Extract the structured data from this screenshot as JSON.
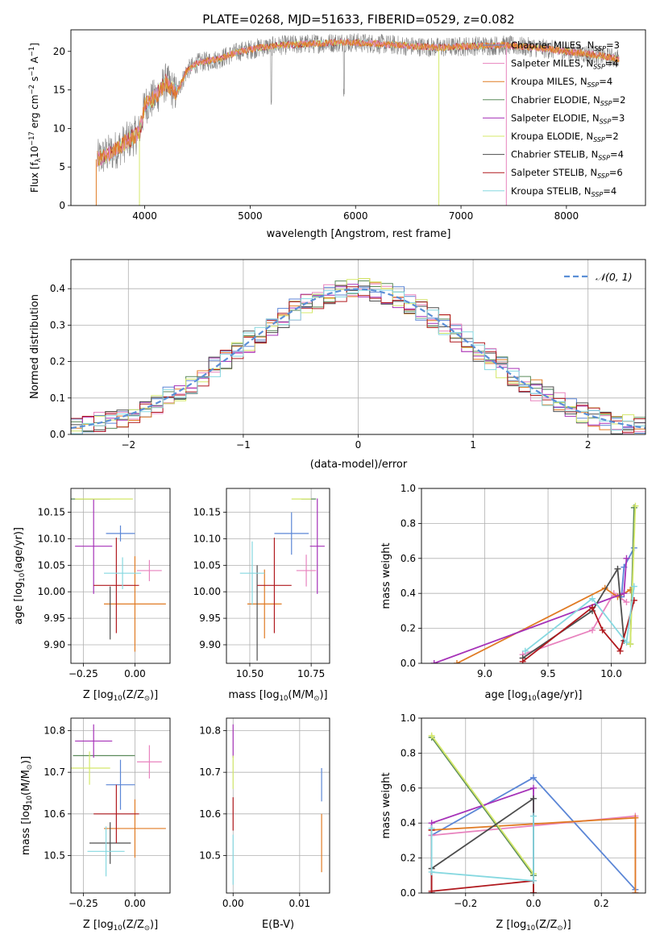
{
  "figure_title": "PLATE=0268, MJD=51633, FIBERID=0529, z=0.082",
  "colors": {
    "Chabrier MILES": "#5b86d6",
    "Salpeter MILES": "#e882be",
    "Kroupa MILES": "#e07b24",
    "Chabrier ELODIE": "#5a8a5a",
    "Salpeter ELODIE": "#a632b8",
    "Kroupa ELODIE": "#d4e86a",
    "Chabrier STELIB": "#4d4d4d",
    "Salpeter STELIB": "#b0191e",
    "Kroupa STELIB": "#86d8e0",
    "normal": "#5b8fd6"
  },
  "chart_data": [
    {
      "id": "spectrum",
      "type": "line",
      "xlabel": "wavelength [Angstrom, rest frame]",
      "ylabel_parts": [
        "Flux [f",
        "λ",
        "10",
        "−17",
        " erg cm",
        "−2",
        " s",
        "−1",
        " A",
        "−1",
        "]"
      ],
      "xlim": [
        3300,
        8750
      ],
      "ylim": [
        0,
        22.8
      ],
      "xticks": [
        4000,
        5000,
        6000,
        7000,
        8000
      ],
      "yticks": [
        0,
        5,
        10,
        15,
        20
      ],
      "continuum_x": [
        3550,
        3700,
        3850,
        3950,
        4000,
        4100,
        4200,
        4300,
        4400,
        4500,
        4700,
        4900,
        5100,
        5300,
        5600,
        5900,
        6200,
        6500,
        6800,
        7100,
        7400,
        7700,
        8000,
        8300,
        8500
      ],
      "continuum_y": [
        6.0,
        7.0,
        8.5,
        9.5,
        13.0,
        14.0,
        16.0,
        14.5,
        17.5,
        18.5,
        19.0,
        20.0,
        20.5,
        20.8,
        21.0,
        21.2,
        21.0,
        20.7,
        20.5,
        20.7,
        20.8,
        20.5,
        20.0,
        19.5,
        19.0
      ],
      "series": [
        {
          "name": "Chabrier MILES",
          "ssp": "3"
        },
        {
          "name": "Salpeter MILES",
          "ssp": "4"
        },
        {
          "name": "Kroupa MILES",
          "ssp": "4"
        },
        {
          "name": "Chabrier ELODIE",
          "ssp": "2"
        },
        {
          "name": "Salpeter ELODIE",
          "ssp": "3"
        },
        {
          "name": "Kroupa ELODIE",
          "ssp": "2"
        },
        {
          "name": "Chabrier STELIB",
          "ssp": "4"
        },
        {
          "name": "Salpeter STELIB",
          "ssp": "6"
        },
        {
          "name": "Kroupa STELIB",
          "ssp": "4"
        }
      ],
      "ssp_label": "N",
      "ssp_sub": "SSP",
      "legend_loc": "right"
    },
    {
      "id": "residuals",
      "type": "histogram",
      "xlabel": "(data-model)/error",
      "ylabel": "Normed distribution",
      "xlim": [
        -2.5,
        2.5
      ],
      "ylim": [
        0,
        0.48
      ],
      "xticks": [
        -2,
        -1,
        0,
        1,
        2
      ],
      "yticks": [
        0,
        0.1,
        0.2,
        0.3,
        0.4
      ],
      "bin_width": 0.1,
      "bin_start": -2.5,
      "legend_label": "𝒩(0, 1)",
      "grid": true
    },
    {
      "id": "age-Z",
      "type": "errorbar",
      "xlabel_parts": [
        "Z [log",
        "10",
        "(Z/Z",
        "⊙",
        ")]"
      ],
      "ylabel_parts": [
        "age  [log",
        "10",
        "(age/yr)]"
      ],
      "xlim": [
        -0.31,
        0.17
      ],
      "ylim": [
        9.865,
        10.195
      ],
      "xticks": [
        -0.25,
        0.0
      ],
      "xtick_labels": [
        "−0.25",
        "0.00"
      ],
      "yticks": [
        9.9,
        9.95,
        10.0,
        10.05,
        10.1,
        10.15
      ],
      "points": [
        {
          "series": "Chabrier MILES",
          "x": -0.07,
          "xerr": 0.07,
          "y": 10.11,
          "yerr": 0.015
        },
        {
          "series": "Salpeter MILES",
          "x": 0.07,
          "xerr": 0.06,
          "y": 10.04,
          "yerr": 0.02
        },
        {
          "series": "Kroupa MILES",
          "x": 0.0,
          "xerr": 0.15,
          "y": 9.977,
          "yerr": 0.09
        },
        {
          "series": "Chabrier ELODIE",
          "x": -0.22,
          "xerr": 0.1,
          "y": 10.175,
          "yerr": 0.0
        },
        {
          "series": "Salpeter ELODIE",
          "x": -0.2,
          "xerr": 0.09,
          "y": 10.086,
          "yerr": 0.09
        },
        {
          "series": "Kroupa ELODIE",
          "x": -0.15,
          "xerr": 0.14,
          "y": 10.175,
          "yerr": 0.0
        },
        {
          "series": "Chabrier STELIB",
          "x": -0.12,
          "xerr": 0.0,
          "y": 9.96,
          "yerr": 0.05
        },
        {
          "series": "Salpeter STELIB",
          "x": -0.09,
          "xerr": 0.11,
          "y": 10.012,
          "yerr": 0.09
        },
        {
          "series": "Kroupa STELIB",
          "x": -0.06,
          "xerr": 0.09,
          "y": 10.035,
          "yerr": 0.03
        }
      ],
      "grid": true
    },
    {
      "id": "age-mass",
      "type": "errorbar",
      "xlabel_parts": [
        "mass [log",
        "10",
        "(M/M",
        "⊙",
        ")]"
      ],
      "xlim": [
        10.405,
        10.825
      ],
      "ylim": [
        9.865,
        10.195
      ],
      "xticks": [
        10.5,
        10.75
      ],
      "xtick_labels": [
        "10.50",
        "10.75"
      ],
      "yticks": [
        9.9,
        9.95,
        10.0,
        10.05,
        10.1,
        10.15
      ],
      "points": [
        {
          "series": "Chabrier MILES",
          "x": 10.67,
          "xerr": 0.07,
          "y": 10.11,
          "yerr": 0.04
        },
        {
          "series": "Salpeter MILES",
          "x": 10.73,
          "xerr": 0.04,
          "y": 10.04,
          "yerr": 0.03
        },
        {
          "series": "Kroupa MILES",
          "x": 10.56,
          "xerr": 0.07,
          "y": 9.977,
          "yerr": 0.065
        },
        {
          "series": "Chabrier ELODIE",
          "x": 10.74,
          "xerr": 0.03,
          "y": 10.175,
          "yerr": 0.0
        },
        {
          "series": "Salpeter ELODIE",
          "x": 10.775,
          "xerr": 0.03,
          "y": 10.086,
          "yerr": 0.09
        },
        {
          "series": "Kroupa ELODIE",
          "x": 10.71,
          "xerr": 0.04,
          "y": 10.175,
          "yerr": 0.0
        },
        {
          "series": "Chabrier STELIB",
          "x": 10.53,
          "xerr": 0.0,
          "y": 9.96,
          "yerr": 0.09
        },
        {
          "series": "Salpeter STELIB",
          "x": 10.6,
          "xerr": 0.07,
          "y": 10.012,
          "yerr": 0.09
        },
        {
          "series": "Kroupa STELIB",
          "x": 10.51,
          "xerr": 0.05,
          "y": 10.035,
          "yerr": 0.06
        }
      ],
      "grid": true
    },
    {
      "id": "weight-age",
      "type": "line",
      "xlabel_parts": [
        "age  [log",
        "10",
        "(age/yr)]"
      ],
      "ylabel": "mass weight",
      "xlim": [
        8.5,
        10.27
      ],
      "ylim": [
        0,
        1.0
      ],
      "xticks": [
        9.0,
        9.5,
        10.0
      ],
      "xtick_labels": [
        "9.0",
        "9.5",
        "10.0"
      ],
      "yticks": [
        0,
        0.2,
        0.4,
        0.6,
        0.8,
        1.0
      ],
      "ytick_labels": [
        "0.0",
        "0.2",
        "0.4",
        "0.6",
        "0.8",
        "1.0"
      ],
      "series": [
        {
          "name": "Chabrier MILES",
          "x": [
            10.08,
            10.1,
            10.18
          ],
          "y": [
            0.38,
            0.55,
            0.66
          ]
        },
        {
          "name": "Salpeter MILES",
          "x": [
            9.3,
            9.85,
            10.02,
            10.12
          ],
          "y": [
            0.05,
            0.19,
            0.4,
            0.35
          ]
        },
        {
          "name": "Kroupa MILES",
          "x": [
            8.78,
            9.95,
            10.05,
            10.15
          ],
          "y": [
            0.0,
            0.43,
            0.38,
            0.42
          ]
        },
        {
          "name": "Chabrier ELODIE",
          "x": [
            10.15,
            10.18
          ],
          "y": [
            0.11,
            0.89
          ]
        },
        {
          "name": "Salpeter ELODIE",
          "x": [
            8.6,
            10.1,
            10.12
          ],
          "y": [
            0.0,
            0.4,
            0.6
          ]
        },
        {
          "name": "Kroupa ELODIE",
          "x": [
            10.15,
            10.19
          ],
          "y": [
            0.11,
            0.9
          ]
        },
        {
          "name": "Chabrier STELIB",
          "x": [
            9.3,
            9.85,
            10.05,
            10.1
          ],
          "y": [
            0.03,
            0.3,
            0.54,
            0.13
          ]
        },
        {
          "name": "Salpeter STELIB",
          "x": [
            9.3,
            9.85,
            9.93,
            10.07,
            10.18
          ],
          "y": [
            0.01,
            0.32,
            0.19,
            0.07,
            0.36
          ]
        },
        {
          "name": "Kroupa STELIB",
          "x": [
            9.32,
            9.85,
            10.12,
            10.18
          ],
          "y": [
            0.07,
            0.37,
            0.12,
            0.44
          ]
        }
      ],
      "grid": true
    },
    {
      "id": "mass-Z",
      "type": "errorbar",
      "xlabel_parts": [
        "Z [log",
        "10",
        "(Z/Z",
        "⊙",
        ")]"
      ],
      "ylabel_parts": [
        "mass [log",
        "10",
        "(M/M",
        "⊙",
        ")]"
      ],
      "xlim": [
        -0.31,
        0.17
      ],
      "ylim": [
        10.41,
        10.83
      ],
      "xticks": [
        -0.25,
        0.0
      ],
      "xtick_labels": [
        "−0.25",
        "0.00"
      ],
      "yticks": [
        10.5,
        10.6,
        10.7,
        10.8
      ],
      "points": [
        {
          "series": "Chabrier MILES",
          "x": -0.07,
          "xerr": 0.07,
          "y": 10.67,
          "yerr": 0.06
        },
        {
          "series": "Salpeter MILES",
          "x": 0.07,
          "xerr": 0.06,
          "y": 10.725,
          "yerr": 0.04
        },
        {
          "series": "Kroupa MILES",
          "x": 0.0,
          "xerr": 0.15,
          "y": 10.565,
          "yerr": 0.07
        },
        {
          "series": "Chabrier ELODIE",
          "x": -0.15,
          "xerr": 0.15,
          "y": 10.74,
          "yerr": 0.0
        },
        {
          "series": "Salpeter ELODIE",
          "x": -0.2,
          "xerr": 0.09,
          "y": 10.775,
          "yerr": 0.04
        },
        {
          "series": "Kroupa ELODIE",
          "x": -0.22,
          "xerr": 0.1,
          "y": 10.71,
          "yerr": 0.04
        },
        {
          "series": "Chabrier STELIB",
          "x": -0.12,
          "xerr": 0.1,
          "y": 10.53,
          "yerr": 0.05
        },
        {
          "series": "Salpeter STELIB",
          "x": -0.09,
          "xerr": 0.11,
          "y": 10.6,
          "yerr": 0.07
        },
        {
          "series": "Kroupa STELIB",
          "x": -0.14,
          "xerr": 0.09,
          "y": 10.51,
          "yerr": 0.06
        }
      ],
      "grid": true
    },
    {
      "id": "mass-EBV",
      "type": "errorbar",
      "xlabel": "E(B-V)",
      "xlim": [
        -0.001,
        0.0145
      ],
      "ylim": [
        10.41,
        10.83
      ],
      "xticks": [
        0.0,
        0.01
      ],
      "xtick_labels": [
        "0.00",
        "0.01"
      ],
      "yticks": [
        10.5,
        10.6,
        10.7,
        10.8
      ],
      "points": [
        {
          "series": "Chabrier MILES",
          "x": 0.0133,
          "xerr": 0.0,
          "y": 10.67,
          "yerr": 0.04
        },
        {
          "series": "Kroupa MILES",
          "x": 0.0133,
          "xerr": 0.0,
          "y": 10.53,
          "yerr": 0.07
        },
        {
          "series": "Salpeter ELODIE",
          "x": 0.0,
          "xerr": 0.0,
          "y": 10.775,
          "yerr": 0.04
        },
        {
          "series": "Kroupa ELODIE",
          "x": 0.0,
          "xerr": 0.0,
          "y": 10.7,
          "yerr": 0.04
        },
        {
          "series": "Salpeter STELIB",
          "x": 0.0,
          "xerr": 0.0,
          "y": 10.6,
          "yerr": 0.04
        },
        {
          "series": "Kroupa STELIB",
          "x": 0.0,
          "xerr": 0.0,
          "y": 10.49,
          "yerr": 0.06
        }
      ],
      "grid": true
    },
    {
      "id": "weight-Z",
      "type": "line",
      "xlabel_parts": [
        "Z [log",
        "10",
        "(Z/Z",
        "⊙",
        ")]"
      ],
      "ylabel": "mass weight",
      "xlim": [
        -0.33,
        0.33
      ],
      "ylim": [
        0,
        1.0
      ],
      "xticks": [
        -0.2,
        0.0,
        0.2
      ],
      "xtick_labels": [
        "−0.2",
        "0.0",
        "0.2"
      ],
      "yticks": [
        0,
        0.2,
        0.4,
        0.6,
        0.8,
        1.0
      ],
      "ytick_labels": [
        "0.0",
        "0.2",
        "0.4",
        "0.6",
        "0.8",
        "1.0"
      ],
      "series": [
        {
          "name": "Chabrier MILES",
          "x": [
            -0.3,
            0.0,
            0.3
          ],
          "y": [
            0.33,
            0.66,
            0.02
          ]
        },
        {
          "name": "Salpeter MILES",
          "x": [
            -0.3,
            0.3,
            0.3
          ],
          "y": [
            0.33,
            0.44,
            0.0
          ]
        },
        {
          "name": "Kroupa MILES",
          "x": [
            -0.3,
            -0.3,
            0.3,
            0.3
          ],
          "y": [
            0.0,
            0.36,
            0.43,
            0.0
          ]
        },
        {
          "name": "Chabrier ELODIE",
          "x": [
            -0.3,
            0.0,
            0.0
          ],
          "y": [
            0.89,
            0.1,
            0.0
          ]
        },
        {
          "name": "Salpeter ELODIE",
          "x": [
            -0.3,
            -0.3,
            0.0,
            0.0
          ],
          "y": [
            0.0,
            0.4,
            0.6,
            0.0
          ]
        },
        {
          "name": "Kroupa ELODIE",
          "x": [
            -0.3,
            0.0,
            0.0
          ],
          "y": [
            0.9,
            0.11,
            0.0
          ]
        },
        {
          "name": "Chabrier STELIB",
          "x": [
            -0.3,
            -0.3,
            0.0,
            0.0
          ],
          "y": [
            0.0,
            0.14,
            0.54,
            0.0
          ]
        },
        {
          "name": "Salpeter STELIB",
          "x": [
            -0.3,
            -0.3,
            0.0,
            0.0
          ],
          "y": [
            0.36,
            0.01,
            0.07,
            0.0
          ]
        },
        {
          "name": "Kroupa STELIB",
          "x": [
            -0.3,
            -0.3,
            0.0,
            0.0
          ],
          "y": [
            0.37,
            0.12,
            0.07,
            0.44
          ]
        }
      ],
      "grid": true
    }
  ]
}
